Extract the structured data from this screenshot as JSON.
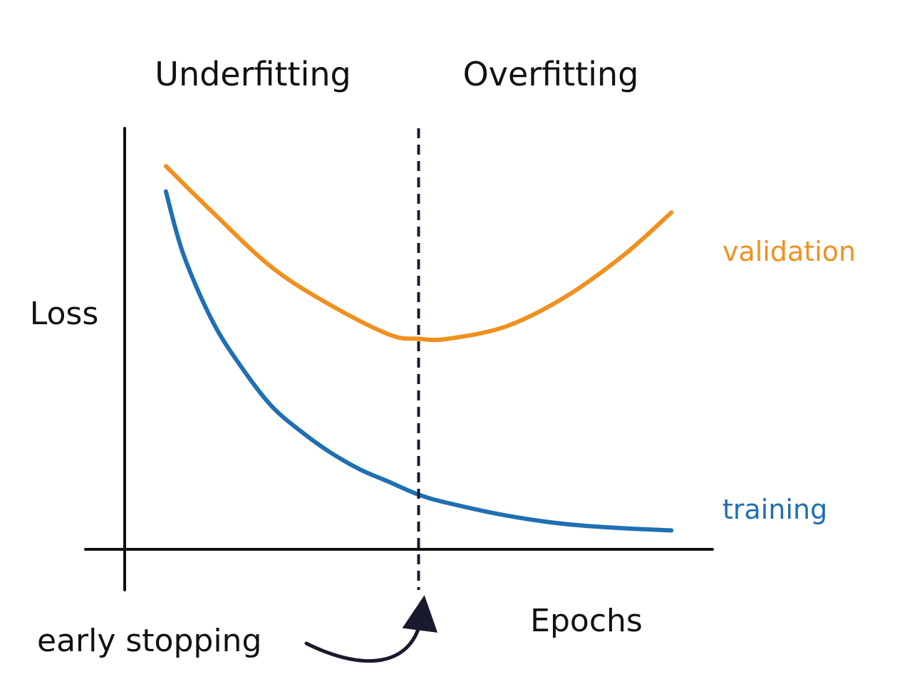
{
  "chart_data": {
    "type": "line",
    "ylabel": "Loss",
    "xlabel": "Epochs",
    "grid": false,
    "xlim": [
      0,
      100
    ],
    "ylim": [
      0,
      100
    ],
    "regions": [
      {
        "label": "Underfitting",
        "from": 0,
        "to": 50
      },
      {
        "label": "Overfitting",
        "from": 50,
        "to": 100
      }
    ],
    "early_stopping": {
      "label": "early stopping",
      "x": 50
    },
    "series": [
      {
        "name": "validation",
        "color": "#f0901e",
        "x": [
          7,
          15,
          25,
          35,
          45,
          50,
          55,
          65,
          75,
          85,
          93
        ],
        "y": [
          91,
          80,
          67,
          58,
          51,
          50,
          50,
          53,
          60,
          70,
          80
        ]
      },
      {
        "name": "training",
        "color": "#1f6fb2",
        "x": [
          7,
          10,
          15,
          20,
          25,
          30,
          35,
          40,
          45,
          50,
          55,
          65,
          75,
          85,
          93
        ],
        "y": [
          85,
          70,
          54,
          43,
          34,
          28,
          23,
          19,
          16,
          13,
          11,
          8,
          6,
          5,
          4.5
        ]
      }
    ]
  }
}
